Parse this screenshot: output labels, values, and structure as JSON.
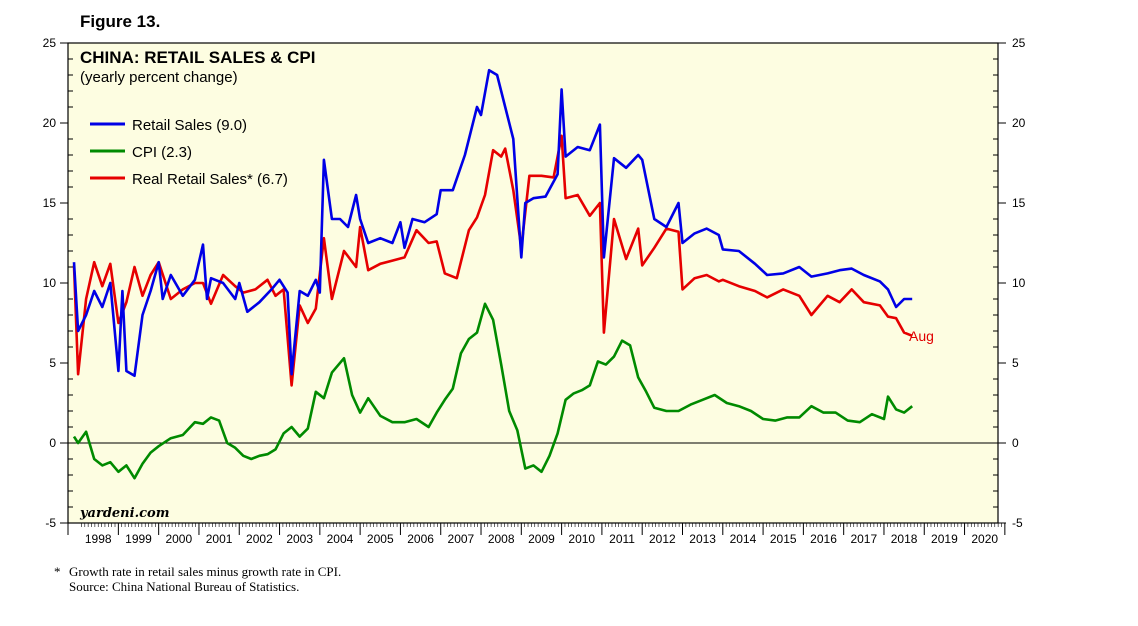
{
  "figure_label": "Figure 13.",
  "footnote_mark": "*",
  "footnote": "Growth rate in retail sales minus growth rate in CPI.",
  "source": "Source: China National Bureau of Statistics.",
  "chart_data": {
    "type": "line",
    "title": "CHINA: RETAIL SALES & CPI",
    "subtitle": "(yearly percent change)",
    "watermark": "yardeni.com",
    "annotation": "Aug",
    "ylim": [
      -5,
      25
    ],
    "yticks": [
      -5,
      0,
      5,
      10,
      15,
      20,
      25
    ],
    "x_range": [
      1997.75,
      2020.83
    ],
    "x_categories": [
      "1998",
      "1999",
      "2000",
      "2001",
      "2002",
      "2003",
      "2004",
      "2005",
      "2006",
      "2007",
      "2008",
      "2009",
      "2010",
      "2011",
      "2012",
      "2013",
      "2014",
      "2015",
      "2016",
      "2017",
      "2018",
      "2019",
      "2020"
    ],
    "background": "#fdfde1",
    "grid": false,
    "zero_line": true,
    "legend_position": "top-left",
    "series": [
      {
        "name": "Retail Sales (9.0)",
        "color": "#0000e6",
        "x": [
          1997.9,
          1998.0,
          1998.2,
          1998.4,
          1998.6,
          1998.8,
          1999.0,
          1999.1,
          1999.2,
          1999.4,
          1999.6,
          1999.8,
          2000.0,
          2000.1,
          2000.3,
          2000.6,
          2000.9,
          2001.1,
          2001.2,
          2001.3,
          2001.6,
          2001.9,
          2002.0,
          2002.2,
          2002.5,
          2002.8,
          2003.0,
          2003.2,
          2003.3,
          2003.5,
          2003.7,
          2003.9,
          2004.0,
          2004.1,
          2004.3,
          2004.5,
          2004.7,
          2004.9,
          2005.0,
          2005.2,
          2005.5,
          2005.8,
          2006.0,
          2006.1,
          2006.3,
          2006.6,
          2006.9,
          2007.0,
          2007.3,
          2007.6,
          2007.9,
          2008.0,
          2008.2,
          2008.4,
          2008.6,
          2008.8,
          2009.0,
          2009.1,
          2009.3,
          2009.6,
          2009.9,
          2010.0,
          2010.1,
          2010.4,
          2010.7,
          2010.95,
          2011.05,
          2011.3,
          2011.6,
          2011.9,
          2012.0,
          2012.3,
          2012.6,
          2012.9,
          2013.0,
          2013.3,
          2013.6,
          2013.9,
          2014.0,
          2014.4,
          2014.8,
          2015.1,
          2015.5,
          2015.9,
          2016.2,
          2016.6,
          2016.9,
          2017.2,
          2017.5,
          2017.9,
          2018.1,
          2018.3,
          2018.5,
          2018.7
        ],
        "y": [
          11.3,
          7.0,
          8.0,
          9.5,
          8.5,
          10.0,
          4.5,
          9.5,
          4.5,
          4.2,
          8.0,
          9.5,
          11.3,
          9.0,
          10.5,
          9.2,
          10.2,
          12.4,
          9.0,
          10.3,
          10.0,
          9.0,
          10.0,
          8.2,
          8.8,
          9.6,
          10.2,
          9.4,
          4.3,
          9.5,
          9.2,
          10.2,
          9.4,
          17.7,
          14.0,
          14.0,
          13.5,
          15.5,
          14.0,
          12.5,
          12.8,
          12.5,
          13.8,
          12.2,
          14.0,
          13.8,
          14.3,
          15.8,
          15.8,
          18.0,
          21.0,
          20.5,
          23.3,
          23.0,
          21.0,
          19.0,
          11.6,
          15.0,
          15.3,
          15.4,
          16.8,
          22.1,
          17.9,
          18.5,
          18.3,
          19.9,
          11.6,
          17.8,
          17.2,
          18.0,
          17.7,
          14.0,
          13.5,
          15.0,
          12.5,
          13.1,
          13.4,
          13.0,
          12.1,
          12.0,
          11.2,
          10.5,
          10.6,
          11.0,
          10.4,
          10.6,
          10.8,
          10.9,
          10.5,
          10.1,
          9.6,
          8.5,
          9.0,
          9.0
        ]
      },
      {
        "name": "CPI (2.3)",
        "color": "#008a00",
        "x": [
          1997.9,
          1998.0,
          1998.2,
          1998.4,
          1998.6,
          1998.8,
          1999.0,
          1999.2,
          1999.4,
          1999.6,
          1999.8,
          2000.0,
          2000.3,
          2000.6,
          2000.9,
          2001.1,
          2001.3,
          2001.5,
          2001.7,
          2001.9,
          2002.1,
          2002.3,
          2002.5,
          2002.7,
          2002.9,
          2003.1,
          2003.3,
          2003.5,
          2003.7,
          2003.9,
          2004.1,
          2004.3,
          2004.6,
          2004.8,
          2005.0,
          2005.2,
          2005.5,
          2005.8,
          2006.1,
          2006.4,
          2006.7,
          2006.9,
          2007.1,
          2007.3,
          2007.5,
          2007.7,
          2007.9,
          2008.1,
          2008.3,
          2008.5,
          2008.7,
          2008.9,
          2009.1,
          2009.3,
          2009.5,
          2009.7,
          2009.9,
          2010.1,
          2010.3,
          2010.5,
          2010.7,
          2010.9,
          2011.1,
          2011.3,
          2011.5,
          2011.7,
          2011.9,
          2012.1,
          2012.3,
          2012.6,
          2012.9,
          2013.2,
          2013.5,
          2013.8,
          2014.1,
          2014.4,
          2014.7,
          2015.0,
          2015.3,
          2015.6,
          2015.9,
          2016.2,
          2016.5,
          2016.8,
          2017.1,
          2017.4,
          2017.7,
          2018.0,
          2018.1,
          2018.3,
          2018.5,
          2018.7
        ],
        "y": [
          0.4,
          0.0,
          0.7,
          -1.0,
          -1.4,
          -1.2,
          -1.8,
          -1.4,
          -2.2,
          -1.3,
          -0.6,
          -0.2,
          0.3,
          0.5,
          1.3,
          1.2,
          1.6,
          1.4,
          0.0,
          -0.3,
          -0.8,
          -1.0,
          -0.8,
          -0.7,
          -0.4,
          0.6,
          1.0,
          0.4,
          0.9,
          3.2,
          2.8,
          4.4,
          5.3,
          3.0,
          1.9,
          2.8,
          1.7,
          1.3,
          1.3,
          1.5,
          1.0,
          1.9,
          2.7,
          3.4,
          5.6,
          6.5,
          6.9,
          8.7,
          7.7,
          4.9,
          2.0,
          0.8,
          -1.6,
          -1.4,
          -1.8,
          -0.8,
          0.6,
          2.7,
          3.1,
          3.3,
          3.6,
          5.1,
          4.9,
          5.4,
          6.4,
          6.1,
          4.1,
          3.2,
          2.2,
          2.0,
          2.0,
          2.4,
          2.7,
          3.0,
          2.5,
          2.3,
          2.0,
          1.5,
          1.4,
          1.6,
          1.6,
          2.3,
          1.9,
          1.9,
          1.4,
          1.3,
          1.8,
          1.5,
          2.9,
          2.1,
          1.9,
          2.3
        ]
      },
      {
        "name": "Real Retail Sales* (6.7)",
        "color": "#e60000",
        "x": [
          1997.9,
          1998.0,
          1998.2,
          1998.4,
          1998.6,
          1998.8,
          1999.0,
          1999.2,
          1999.4,
          1999.6,
          1999.8,
          2000.0,
          2000.3,
          2000.6,
          2000.9,
          2001.1,
          2001.3,
          2001.6,
          2001.9,
          2002.1,
          2002.4,
          2002.7,
          2002.9,
          2003.1,
          2003.3,
          2003.5,
          2003.7,
          2003.9,
          2004.1,
          2004.3,
          2004.6,
          2004.9,
          2005.0,
          2005.2,
          2005.5,
          2005.8,
          2006.1,
          2006.4,
          2006.7,
          2006.9,
          2007.1,
          2007.4,
          2007.7,
          2007.9,
          2008.1,
          2008.3,
          2008.5,
          2008.6,
          2008.8,
          2009.0,
          2009.2,
          2009.5,
          2009.8,
          2010.0,
          2010.1,
          2010.4,
          2010.7,
          2010.95,
          2011.05,
          2011.3,
          2011.6,
          2011.9,
          2012.0,
          2012.3,
          2012.6,
          2012.9,
          2013.0,
          2013.3,
          2013.6,
          2013.9,
          2014.0,
          2014.4,
          2014.8,
          2015.1,
          2015.5,
          2015.9,
          2016.2,
          2016.6,
          2016.9,
          2017.2,
          2017.5,
          2017.9,
          2018.1,
          2018.3,
          2018.5,
          2018.7
        ],
        "y": [
          11.1,
          4.3,
          9.0,
          11.3,
          9.8,
          11.2,
          7.5,
          8.8,
          11.0,
          9.2,
          10.5,
          11.3,
          9.0,
          9.6,
          10.0,
          10.0,
          8.7,
          10.5,
          9.8,
          9.4,
          9.6,
          10.2,
          9.2,
          9.6,
          3.6,
          8.6,
          7.5,
          8.4,
          12.8,
          9.0,
          12.0,
          11.0,
          13.5,
          10.8,
          11.2,
          11.4,
          11.6,
          13.3,
          12.5,
          12.6,
          10.6,
          10.3,
          13.3,
          14.1,
          15.5,
          18.3,
          17.9,
          18.4,
          15.8,
          12.2,
          16.7,
          16.7,
          16.6,
          19.2,
          15.3,
          15.5,
          14.2,
          15.0,
          6.9,
          14.0,
          11.5,
          13.4,
          11.1,
          12.2,
          13.4,
          13.2,
          9.6,
          10.3,
          10.5,
          10.1,
          10.2,
          9.8,
          9.5,
          9.1,
          9.6,
          9.2,
          8.0,
          9.2,
          8.8,
          9.6,
          8.8,
          8.6,
          7.9,
          7.8,
          6.9,
          6.7
        ]
      }
    ]
  }
}
